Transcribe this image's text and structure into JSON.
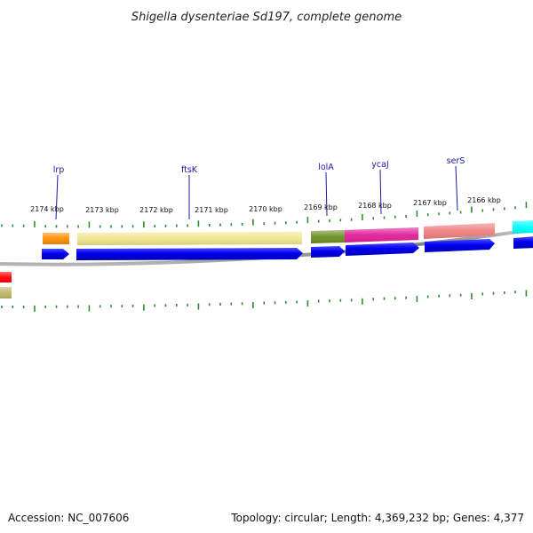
{
  "title": "Shigella dysenteriae Sd197, complete genome",
  "footer": {
    "accession": "Accession: NC_007606",
    "summary": "Topology: circular; Length: 4,369,232 bp; Genes: 4,377"
  },
  "kbp_ticks": [
    "2174 kbp",
    "2173 kbp",
    "2172 kbp",
    "2171 kbp",
    "2170 kbp",
    "2169 kbp",
    "2168 kbp",
    "2167 kbp",
    "2166 kbp"
  ],
  "gene_labels": [
    "lrp",
    "ftsK",
    "lolA",
    "ycaJ",
    "serS"
  ],
  "colors": {
    "cds_arrow": "#0000ee",
    "backbone": "#8c8c8c",
    "tick": "#2e8b2e",
    "label": "#1a1aa6",
    "features": [
      "#ff8c00",
      "#f0e68c",
      "#6b8e23",
      "#e0209a",
      "#f08080",
      "#00ffff",
      "#ff0000",
      "#bdb76b"
    ]
  }
}
